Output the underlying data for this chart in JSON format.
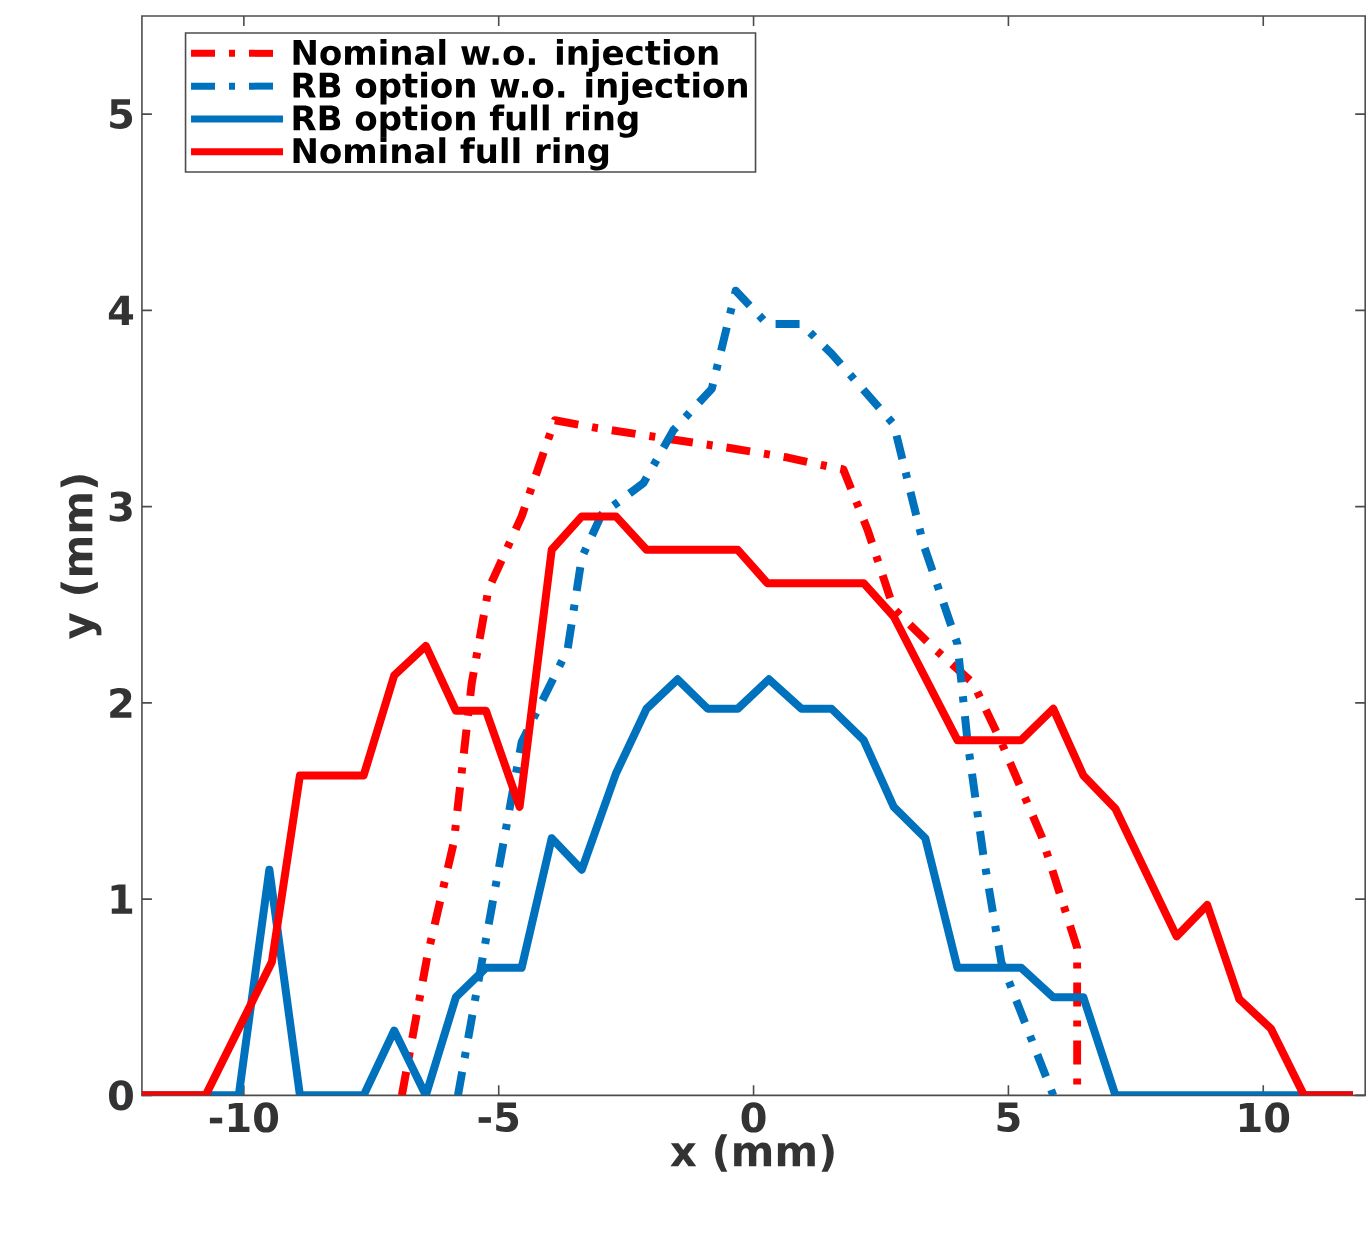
{
  "chart_data": {
    "type": "line",
    "xlabel": "x (mm)",
    "ylabel": "y (mm)",
    "xlim": [
      -12,
      12
    ],
    "ylim": [
      0,
      5.5
    ],
    "xticks": [
      -10,
      -5,
      0,
      5,
      10
    ],
    "yticks": [
      0,
      1,
      2,
      3,
      4,
      5
    ],
    "legend": "top left",
    "series": [
      {
        "name": "Nominal w.o. injection",
        "color": "#ff0000",
        "line_style": "dashdot",
        "x": [
          -6.9,
          -6.4,
          -5.88,
          -5.53,
          -5.2,
          -4.55,
          -3.9,
          -3.06,
          -1.8,
          -0.5,
          0.67,
          1.18,
          1.76,
          2.24,
          2.75,
          3.53,
          4.31,
          4.86,
          5.65,
          6.35,
          6.35
        ],
        "values": [
          0,
          0.71,
          1.29,
          2.1,
          2.58,
          2.95,
          3.44,
          3.4,
          3.35,
          3.3,
          3.25,
          3.22,
          3.19,
          2.88,
          2.48,
          2.28,
          2.1,
          1.8,
          1.32,
          0.75,
          0
        ]
      },
      {
        "name": "RB option w.o. injection",
        "color": "#0072bd",
        "line_style": "dashdot",
        "x": [
          -5.8,
          -5.33,
          -4.55,
          -3.65,
          -3.37,
          -2.98,
          -2.16,
          -1.57,
          -0.82,
          -0.35,
          0.27,
          0.94,
          1.53,
          2.75,
          3.33,
          4.0,
          4.2,
          4.51,
          4.86,
          5.88
        ],
        "values": [
          0,
          0.68,
          1.8,
          2.27,
          2.74,
          2.96,
          3.12,
          3.39,
          3.6,
          4.1,
          3.93,
          3.93,
          3.78,
          3.42,
          2.81,
          2.3,
          1.8,
          1.22,
          0.68,
          0
        ]
      },
      {
        "name": "RB option full ring",
        "color": "#0072bd",
        "line_style": "solid",
        "x": [
          -12,
          -10.1,
          -9.5,
          -8.9,
          -7.65,
          -7.05,
          -6.43,
          -5.84,
          -5.25,
          -4.55,
          -3.96,
          -3.37,
          -2.7,
          -2.1,
          -1.49,
          -0.9,
          -0.31,
          0.3,
          0.94,
          1.53,
          2.16,
          2.75,
          3.37,
          4.0,
          5.25,
          5.88,
          6.47,
          7.1,
          11.76
        ],
        "values": [
          0,
          0,
          1.15,
          0,
          0,
          0.33,
          0,
          0.5,
          0.65,
          0.65,
          1.31,
          1.15,
          1.64,
          1.97,
          2.12,
          1.97,
          1.97,
          2.12,
          1.97,
          1.97,
          1.81,
          1.47,
          1.31,
          0.65,
          0.65,
          0.5,
          0.5,
          0,
          0
        ]
      },
      {
        "name": "Nominal full ring",
        "color": "#ff0000",
        "line_style": "solid",
        "x": [
          -12,
          -10.75,
          -9.45,
          -8.9,
          -7.65,
          -7.05,
          -6.43,
          -5.84,
          -5.25,
          -4.59,
          -3.96,
          -3.37,
          -2.7,
          -2.1,
          -0.31,
          0.27,
          2.16,
          2.75,
          4.0,
          5.25,
          5.88,
          6.47,
          7.1,
          8.3,
          8.9,
          9.53,
          10.15,
          10.8,
          11.76
        ],
        "values": [
          0,
          0,
          0.68,
          1.63,
          1.63,
          2.14,
          2.29,
          1.96,
          1.96,
          1.47,
          2.78,
          2.95,
          2.95,
          2.78,
          2.78,
          2.61,
          2.61,
          2.44,
          1.81,
          1.81,
          1.97,
          1.63,
          1.46,
          0.81,
          0.97,
          0.49,
          0.34,
          0,
          0
        ]
      }
    ]
  }
}
